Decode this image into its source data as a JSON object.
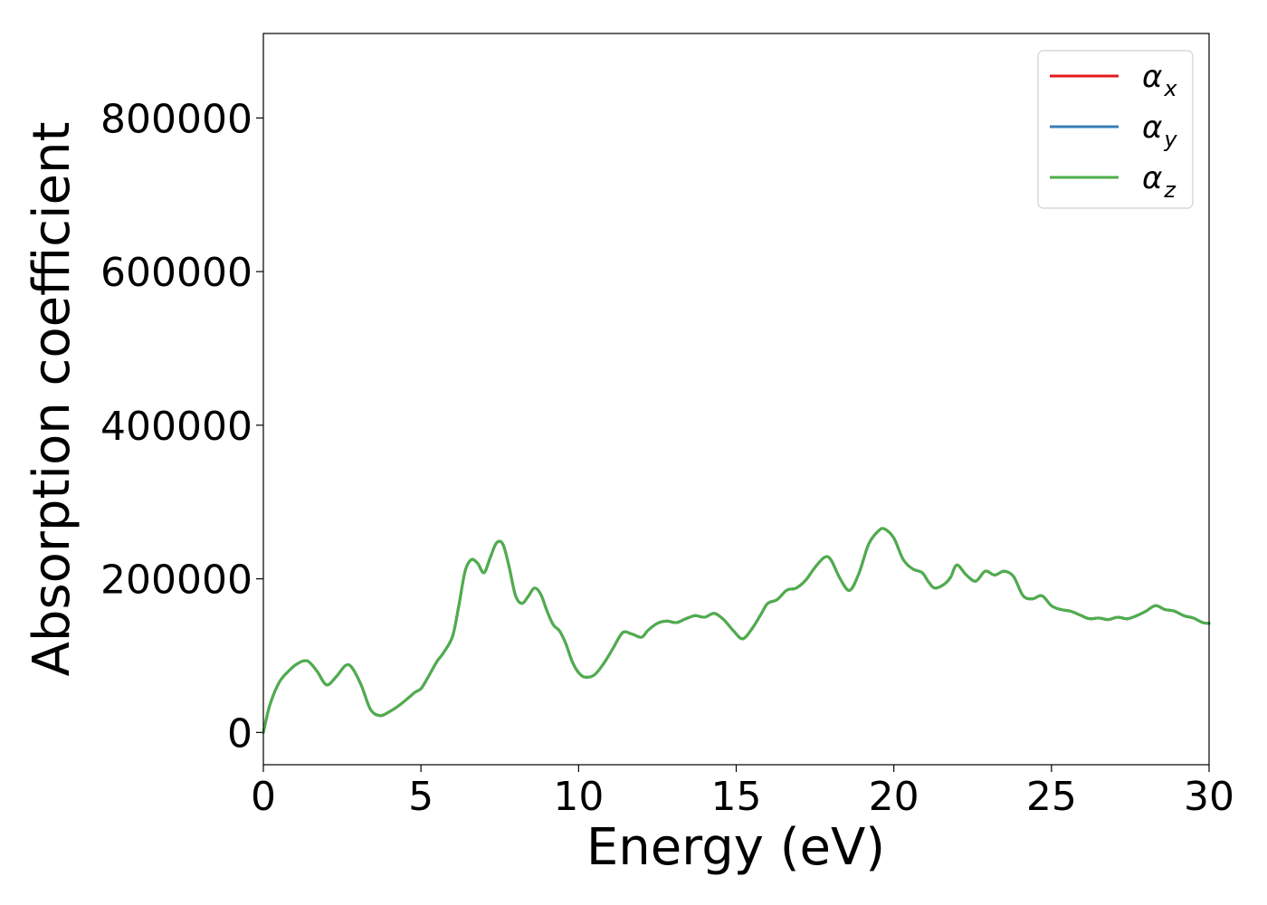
{
  "chart_data": {
    "type": "line",
    "title": "",
    "xlabel": "Energy (eV)",
    "ylabel": "Absorption coefficient",
    "xlim": [
      0,
      30
    ],
    "ylim": [
      -42000,
      910000
    ],
    "xticks": [
      0,
      5,
      10,
      15,
      20,
      25,
      30
    ],
    "xtick_labels": [
      "0",
      "5",
      "10",
      "15",
      "20",
      "25",
      "30"
    ],
    "yticks": [
      0,
      200000,
      400000,
      600000,
      800000
    ],
    "ytick_labels": [
      "0",
      "200000",
      "400000",
      "600000",
      "800000"
    ],
    "grid": false,
    "legend_position": "top-right",
    "series": [
      {
        "name": "α",
        "subscript": "x",
        "color": "#e41a1c"
      },
      {
        "name": "α",
        "subscript": "y",
        "color": "#377eb8"
      },
      {
        "name": "α",
        "subscript": "z",
        "color": "#4daf4a"
      }
    ],
    "x": [
      0,
      0.2,
      0.5,
      0.8,
      1.1,
      1.4,
      1.7,
      2.0,
      2.3,
      2.6,
      2.8,
      3.1,
      3.4,
      3.7,
      4.0,
      4.3,
      4.6,
      4.8,
      5.0,
      5.2,
      5.5,
      5.7,
      6.0,
      6.2,
      6.4,
      6.6,
      6.8,
      7.0,
      7.2,
      7.4,
      7.6,
      7.8,
      8.0,
      8.2,
      8.4,
      8.6,
      8.8,
      9.0,
      9.2,
      9.4,
      9.6,
      9.8,
      10.0,
      10.2,
      10.5,
      10.8,
      11.1,
      11.4,
      11.7,
      12.0,
      12.2,
      12.5,
      12.8,
      13.1,
      13.4,
      13.7,
      14.0,
      14.3,
      14.6,
      14.9,
      15.2,
      15.5,
      15.8,
      16.0,
      16.3,
      16.6,
      16.9,
      17.2,
      17.5,
      17.8,
      18.0,
      18.3,
      18.6,
      18.9,
      19.2,
      19.5,
      19.7,
      20.0,
      20.3,
      20.6,
      20.9,
      21.1,
      21.3,
      21.6,
      21.8,
      22.0,
      22.3,
      22.6,
      22.9,
      23.2,
      23.5,
      23.8,
      24.1,
      24.4,
      24.7,
      25.0,
      25.3,
      25.6,
      25.9,
      26.2,
      26.5,
      26.8,
      27.1,
      27.4,
      27.7,
      28.0,
      28.3,
      28.6,
      28.9,
      29.2,
      29.5,
      29.8,
      30.0
    ],
    "y": [
      0,
      35000,
      65000,
      80000,
      90000,
      93000,
      80000,
      62000,
      72000,
      87000,
      85000,
      62000,
      30000,
      22000,
      27000,
      35000,
      45000,
      52000,
      57000,
      70000,
      92000,
      103000,
      125000,
      165000,
      210000,
      225000,
      220000,
      208000,
      228000,
      247000,
      245000,
      215000,
      178000,
      168000,
      177000,
      188000,
      180000,
      158000,
      140000,
      132000,
      115000,
      92000,
      78000,
      72000,
      75000,
      90000,
      110000,
      130000,
      128000,
      124000,
      133000,
      142000,
      145000,
      143000,
      148000,
      152000,
      150000,
      155000,
      147000,
      133000,
      122000,
      135000,
      155000,
      168000,
      173000,
      185000,
      188000,
      198000,
      215000,
      228000,
      225000,
      200000,
      185000,
      208000,
      245000,
      262000,
      265000,
      253000,
      225000,
      213000,
      208000,
      196000,
      188000,
      193000,
      202000,
      218000,
      205000,
      197000,
      210000,
      205000,
      210000,
      203000,
      178000,
      174000,
      178000,
      165000,
      160000,
      158000,
      153000,
      148000,
      149000,
      147000,
      150000,
      148000,
      152000,
      158000,
      165000,
      160000,
      158000,
      152000,
      149000,
      143000,
      142000
    ]
  }
}
